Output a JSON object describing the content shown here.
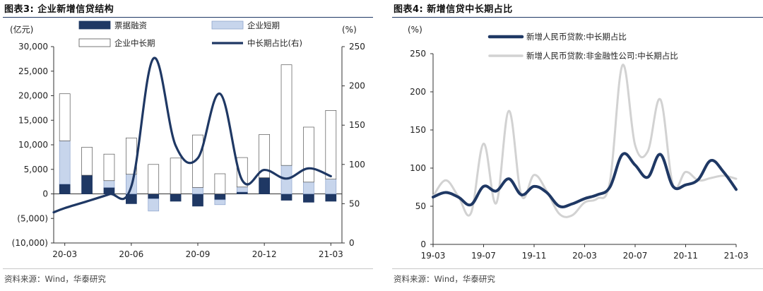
{
  "panels": [
    {
      "title": "图表3:  企业新增信贷结构",
      "source": "资料来源：Wind，华泰研究"
    },
    {
      "title": "图表4:  新增信贷中长期占比",
      "source": "资料来源：Wind，华泰研究"
    }
  ],
  "chart_data": [
    {
      "type": "bar",
      "stacked": true,
      "dual_axis": true,
      "left_unit": "(亿元)",
      "right_unit": "(%)",
      "x_tick_labels": [
        "20-03",
        "20-06",
        "20-09",
        "20-12",
        "21-03"
      ],
      "categories": [
        "20-03",
        "20-04",
        "20-05",
        "20-06",
        "20-07",
        "20-08",
        "20-09",
        "20-10",
        "20-11",
        "20-12",
        "21-01",
        "21-02",
        "21-03"
      ],
      "y_left_ticks": [
        "30,000",
        "25,000",
        "20,000",
        "15,000",
        "10,000",
        "5,000",
        "0",
        "(5,000)",
        "(10,000)"
      ],
      "y_left_lim": [
        -10000,
        30000
      ],
      "y_right_ticks": [
        "250",
        "200",
        "150",
        "100",
        "50",
        "0"
      ],
      "y_right_lim": [
        0,
        250
      ],
      "legend": [
        "票据融资",
        "企业短期",
        "企业中长期",
        "中长期占比(右)"
      ],
      "series": [
        {
          "name": "票据融资",
          "kind": "bar",
          "color": "#1f3864",
          "values": [
            2000,
            3800,
            1300,
            -2000,
            -1000,
            -1500,
            -2500,
            -1200,
            400,
            3300,
            -1300,
            -1700,
            -1500
          ]
        },
        {
          "name": "企业短期",
          "kind": "bar",
          "color": "#c7d5ec",
          "values": [
            8800,
            0,
            1400,
            4000,
            -2500,
            0,
            1300,
            -1000,
            1000,
            0,
            5800,
            2400,
            3000
          ]
        },
        {
          "name": "企业中长期",
          "kind": "bar",
          "color": "#ffffff",
          "values": [
            9600,
            5700,
            5400,
            7400,
            6000,
            7300,
            10700,
            4100,
            6000,
            8800,
            20500,
            11200,
            14000
          ]
        },
        {
          "name": "中长期占比(右)",
          "kind": "line",
          "axis": "right",
          "color": "#1f3864",
          "values": [
            39,
            53,
            62,
            72,
            235,
            124,
            108,
            190,
            80,
            93,
            82,
            95,
            85
          ]
        }
      ]
    },
    {
      "type": "line",
      "y_unit": "(%)",
      "x_tick_labels": [
        "19-03",
        "19-07",
        "19-11",
        "20-03",
        "20-07",
        "20-11",
        "21-03"
      ],
      "y_ticks": [
        "250",
        "200",
        "150",
        "100",
        "50",
        "0"
      ],
      "ylim": [
        0,
        250
      ],
      "x_start": "2019-03",
      "x_end": "2021-03",
      "series": [
        {
          "name": "新增人民币贷款:中长期占比",
          "color": "#1f3864",
          "width": 4,
          "points": [
            [
              "2019-03",
              62
            ],
            [
              "2019-04",
              68
            ],
            [
              "2019-05",
              62
            ],
            [
              "2019-06",
              52
            ],
            [
              "2019-07",
              76
            ],
            [
              "2019-08",
              70
            ],
            [
              "2019-09",
              86
            ],
            [
              "2019-10",
              65
            ],
            [
              "2019-11",
              76
            ],
            [
              "2019-12",
              68
            ],
            [
              "2020-01",
              50
            ],
            [
              "2020-02",
              53
            ],
            [
              "2020-03",
              60
            ],
            [
              "2020-04",
              65
            ],
            [
              "2020-05",
              75
            ],
            [
              "2020-06",
              118
            ],
            [
              "2020-07",
              104
            ],
            [
              "2020-08",
              88
            ],
            [
              "2020-09",
              118
            ],
            [
              "2020-10",
              76
            ],
            [
              "2020-11",
              78
            ],
            [
              "2020-12",
              85
            ],
            [
              "2021-01",
              110
            ],
            [
              "2021-02",
              95
            ],
            [
              "2021-03",
              72
            ]
          ]
        },
        {
          "name": "新增人民币贷款:非金融性公司:中长期占比",
          "color": "#d2d2d2",
          "width": 3,
          "points": [
            [
              "2019-03",
              63
            ],
            [
              "2019-04",
              84
            ],
            [
              "2019-05",
              63
            ],
            [
              "2019-06",
              41
            ],
            [
              "2019-07",
              132
            ],
            [
              "2019-08",
              54
            ],
            [
              "2019-09",
              175
            ],
            [
              "2019-10",
              64
            ],
            [
              "2019-11",
              91
            ],
            [
              "2019-12",
              70
            ],
            [
              "2020-01",
              40
            ],
            [
              "2020-02",
              38
            ],
            [
              "2020-03",
              55
            ],
            [
              "2020-04",
              60
            ],
            [
              "2020-05",
              82
            ],
            [
              "2020-06",
              235
            ],
            [
              "2020-07",
              130
            ],
            [
              "2020-08",
              122
            ],
            [
              "2020-09",
              190
            ],
            [
              "2020-10",
              78
            ],
            [
              "2020-11",
              95
            ],
            [
              "2020-12",
              84
            ],
            [
              "2021-01",
              87
            ],
            [
              "2021-02",
              90
            ],
            [
              "2021-03",
              86
            ]
          ]
        }
      ]
    }
  ]
}
